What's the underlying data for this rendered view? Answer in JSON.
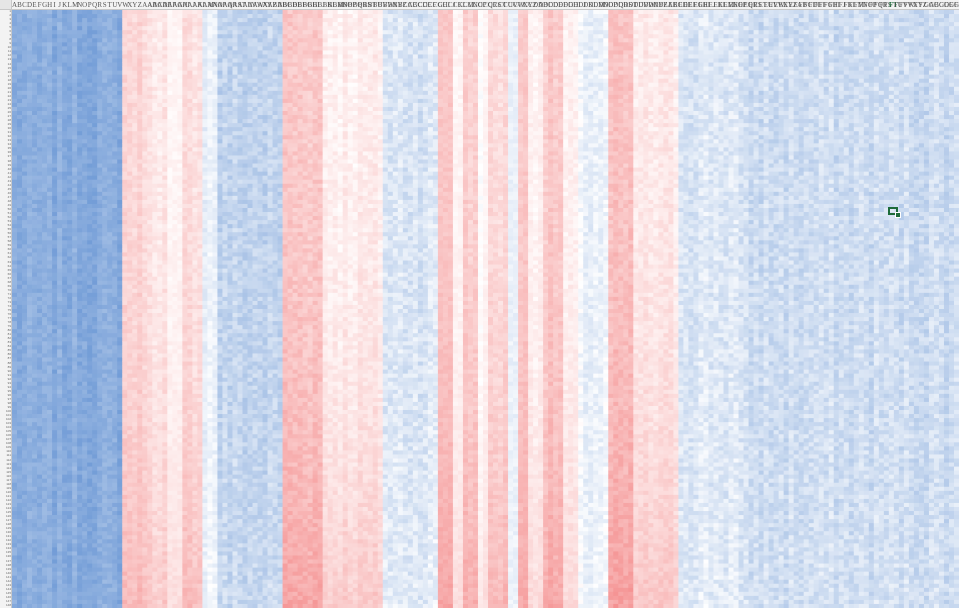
{
  "sheet": {
    "column_labels": [
      "A",
      "B",
      "C",
      "D",
      "E",
      "F",
      "G",
      "H",
      "I",
      "J",
      "K",
      "L",
      "M",
      "N",
      "O",
      "P",
      "Q",
      "R",
      "S",
      "T",
      "U",
      "V",
      "W",
      "X",
      "Y",
      "Z",
      "AA",
      "AB",
      "AC",
      "AD",
      "AE",
      "AF",
      "AG",
      "AH",
      "AI",
      "AJ",
      "AK",
      "AL",
      "AM",
      "AN",
      "AO",
      "AP",
      "AQ",
      "AR",
      "AS",
      "AT",
      "AU",
      "AV",
      "AW",
      "AX",
      "AY",
      "AZ",
      "BA",
      "BB",
      "BC",
      "BD",
      "BE",
      "BF",
      "BG",
      "BH",
      "BI",
      "BJ",
      "BK",
      "BL",
      "BM",
      "BN",
      "BO",
      "BP",
      "BQ",
      "BR",
      "BS",
      "BT",
      "BU",
      "BV",
      "BW",
      "BX",
      "BY",
      "BZ",
      "CA",
      "CB",
      "CC",
      "CD",
      "CE",
      "CF",
      "CG",
      "CH",
      "CI",
      "CJ",
      "CK",
      "CL",
      "CM",
      "CN",
      "CO",
      "CP",
      "CQ",
      "CR",
      "CS",
      "CT",
      "CU",
      "CV",
      "CW",
      "CX",
      "CY",
      "CZ",
      "DA",
      "DB",
      "DC",
      "DD",
      "DE",
      "DF",
      "DG",
      "DH",
      "DI",
      "DJ",
      "DK",
      "DL",
      "DM",
      "DN",
      "DO",
      "DP",
      "DQ",
      "DR",
      "DS",
      "DT",
      "DU",
      "DV",
      "DW",
      "DX",
      "DY",
      "DZ",
      "EA",
      "EB",
      "EC",
      "ED",
      "EE",
      "EF",
      "EG",
      "EH",
      "EI",
      "EJ",
      "EK",
      "EL",
      "EM",
      "EN",
      "EO",
      "EP",
      "EQ",
      "ER",
      "ES",
      "ET",
      "EU",
      "EV",
      "EW",
      "EX",
      "EY",
      "EZ",
      "FA",
      "FB",
      "FC",
      "FD",
      "FE",
      "FF",
      "FG",
      "FH",
      "FI",
      "FJ",
      "FK",
      "FL",
      "FM",
      "FN",
      "FO",
      "FP",
      "FQ",
      "FR",
      "FS",
      "FT",
      "FU",
      "FV",
      "FW",
      "FX",
      "FY",
      "FZ",
      "GA",
      "GB",
      "GC",
      "GD",
      "GE",
      "GF",
      "GG"
    ],
    "selected_column_index": 175,
    "active_cell": {
      "column_index": 175,
      "row_index": 49
    },
    "row_count": 148,
    "row_start": 1,
    "colors": {
      "negative": "#5b8cd0",
      "neutral": "#ffffff",
      "positive": "#f48c8c",
      "selection": "#1d6b3a",
      "header_background": "#f3f3f3",
      "header_border": "#c8c8c8"
    },
    "heatmap_column_groups": [
      {
        "span": 22,
        "level": -0.72,
        "jitter": 0.08,
        "trend": 0.0
      },
      {
        "span": 5,
        "level": 0.35,
        "jitter": 0.1,
        "trend": 0.25
      },
      {
        "span": 4,
        "level": 0.22,
        "jitter": 0.1,
        "trend": 0.25
      },
      {
        "span": 3,
        "level": 0.05,
        "jitter": 0.06,
        "trend": 0.2
      },
      {
        "span": 4,
        "level": 0.28,
        "jitter": 0.1,
        "trend": 0.3
      },
      {
        "span": 3,
        "level": -0.12,
        "jitter": 0.08,
        "trend": 0.15
      },
      {
        "span": 13,
        "level": -0.38,
        "jitter": 0.12,
        "trend": 0.15
      },
      {
        "span": 8,
        "level": 0.48,
        "jitter": 0.12,
        "trend": 0.3
      },
      {
        "span": 12,
        "level": 0.15,
        "jitter": 0.1,
        "trend": 0.3
      },
      {
        "span": 11,
        "level": -0.22,
        "jitter": 0.12,
        "trend": 0.2
      },
      {
        "span": 3,
        "level": 0.5,
        "jitter": 0.08,
        "trend": 0.3
      },
      {
        "span": 2,
        "level": 0.12,
        "jitter": 0.06,
        "trend": 0.2
      },
      {
        "span": 3,
        "level": 0.4,
        "jitter": 0.1,
        "trend": 0.3
      },
      {
        "span": 2,
        "level": 0.05,
        "jitter": 0.06,
        "trend": 0.2
      },
      {
        "span": 4,
        "level": 0.32,
        "jitter": 0.1,
        "trend": 0.3
      },
      {
        "span": 2,
        "level": -0.1,
        "jitter": 0.06,
        "trend": 0.1
      },
      {
        "span": 2,
        "level": 0.45,
        "jitter": 0.08,
        "trend": 0.3
      },
      {
        "span": 3,
        "level": 0.15,
        "jitter": 0.08,
        "trend": 0.2
      },
      {
        "span": 4,
        "level": 0.45,
        "jitter": 0.1,
        "trend": 0.3
      },
      {
        "span": 3,
        "level": 0.1,
        "jitter": 0.08,
        "trend": 0.2
      },
      {
        "span": 6,
        "level": -0.12,
        "jitter": 0.1,
        "trend": 0.1
      },
      {
        "span": 5,
        "level": 0.5,
        "jitter": 0.12,
        "trend": 0.3
      },
      {
        "span": 9,
        "level": 0.18,
        "jitter": 0.1,
        "trend": 0.3
      },
      {
        "span": 12,
        "level": -0.2,
        "jitter": 0.12,
        "trend": 0.15
      },
      {
        "span": 13,
        "level": -0.3,
        "jitter": 0.12,
        "trend": 0.1
      }
    ]
  }
}
